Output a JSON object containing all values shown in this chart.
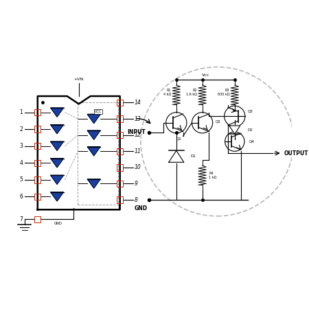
{
  "background": "#ffffff",
  "line_color": "#000000",
  "dashed_color": "#999999",
  "red_box_color": "#cc2200",
  "blue_color": "#1a3fa0",
  "pin_labels_left": [
    "1",
    "2",
    "3",
    "4",
    "5",
    "6"
  ],
  "pin_labels_right": [
    "14",
    "13",
    "12",
    "11",
    "10",
    "9",
    "8"
  ],
  "vcc_top": "+VN",
  "gnd_label": "GND",
  "input_label": "INPUT",
  "output_label": "OUTPUT",
  "vcc_inner": "Vcc",
  "r1_label": "R1\n4 kΩ",
  "r2_label": "R2\n1.6 kΩ",
  "r3_label": "R3\n830 kΩ",
  "r4_label": "R4\n1 kΩ",
  "q1_label": "Q1",
  "q2_label": "Q2",
  "q3_label": "Q3",
  "q4_label": "Q4",
  "d1_label": "D1",
  "d2_label": "D2"
}
